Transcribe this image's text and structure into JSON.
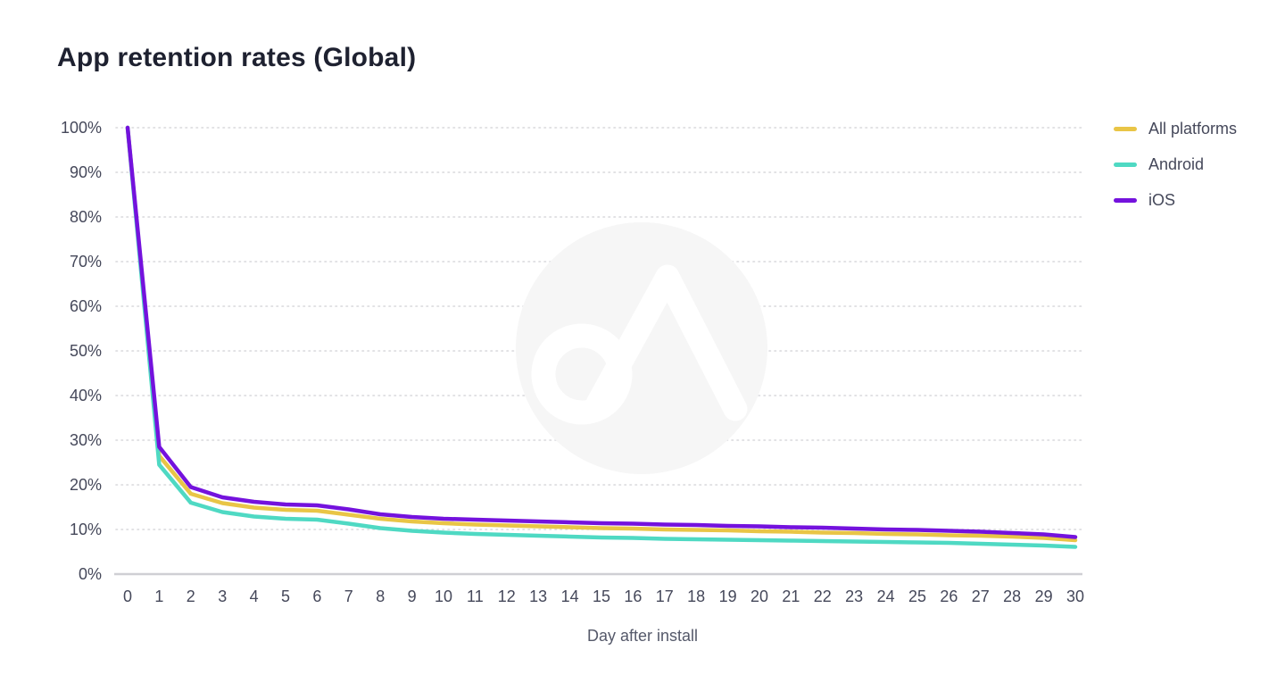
{
  "chart_data": {
    "type": "line",
    "title": "App retention rates (Global)",
    "xlabel": "Day after install",
    "ylabel": "",
    "x": [
      0,
      1,
      2,
      3,
      4,
      5,
      6,
      7,
      8,
      9,
      10,
      11,
      12,
      13,
      14,
      15,
      16,
      17,
      18,
      19,
      20,
      21,
      22,
      23,
      24,
      25,
      26,
      27,
      28,
      29,
      30
    ],
    "xlim": [
      0,
      30
    ],
    "ylim": [
      0,
      100
    ],
    "y_ticks": [
      0,
      10,
      20,
      30,
      40,
      50,
      60,
      70,
      80,
      90,
      100
    ],
    "y_tick_suffix": "%",
    "grid": "horizontal-dotted",
    "legend_position": "top-right",
    "watermark": "adjust-logo-circle",
    "colors": {
      "all_platforms": "#e9c546",
      "android": "#4fd9c3",
      "ios": "#7412dd",
      "grid": "#d8d8dc",
      "axis": "#cfcfd4",
      "watermark_bg": "#f6f6f6"
    },
    "series": [
      {
        "name": "All platforms",
        "color": "#e9c546",
        "values": [
          100,
          26.5,
          18.0,
          15.9,
          14.9,
          14.4,
          14.2,
          13.3,
          12.4,
          11.8,
          11.4,
          11.1,
          10.9,
          10.7,
          10.5,
          10.3,
          10.2,
          10.0,
          9.9,
          9.8,
          9.6,
          9.5,
          9.3,
          9.2,
          9.0,
          8.9,
          8.7,
          8.6,
          8.4,
          8.1,
          7.6
        ]
      },
      {
        "name": "Android",
        "color": "#4fd9c3",
        "values": [
          100,
          24.5,
          16.0,
          13.9,
          12.9,
          12.4,
          12.2,
          11.3,
          10.3,
          9.7,
          9.3,
          9.0,
          8.8,
          8.6,
          8.4,
          8.2,
          8.1,
          7.9,
          7.8,
          7.7,
          7.6,
          7.5,
          7.4,
          7.3,
          7.2,
          7.1,
          7.0,
          6.8,
          6.6,
          6.4,
          6.1
        ]
      },
      {
        "name": "iOS",
        "color": "#7412dd",
        "values": [
          100,
          28.5,
          19.5,
          17.2,
          16.2,
          15.6,
          15.4,
          14.5,
          13.4,
          12.8,
          12.4,
          12.2,
          12.0,
          11.8,
          11.6,
          11.4,
          11.3,
          11.1,
          11.0,
          10.8,
          10.7,
          10.5,
          10.4,
          10.2,
          10.0,
          9.9,
          9.7,
          9.5,
          9.2,
          8.9,
          8.3
        ]
      }
    ]
  }
}
